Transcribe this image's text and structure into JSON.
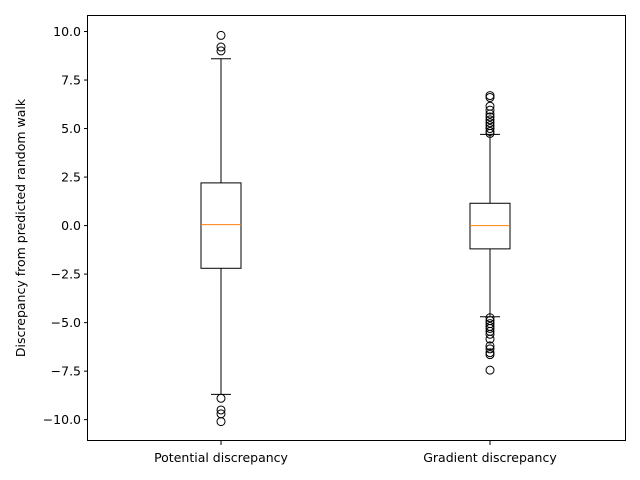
{
  "chart_data": {
    "type": "boxplot",
    "title": "",
    "xlabel": "",
    "ylabel": "Discrepancy from predicted random walk",
    "ylim": [
      -11.1,
      10.8
    ],
    "yticks": [
      -10.0,
      -7.5,
      -5.0,
      -2.5,
      0.0,
      2.5,
      5.0,
      7.5,
      10.0
    ],
    "ytick_labels": [
      "−10.0",
      "−7.5",
      "−5.0",
      "−2.5",
      "0.0",
      "2.5",
      "5.0",
      "7.5",
      "10.0"
    ],
    "grid": false,
    "categories": [
      "Potential discrepancy",
      "Gradient discrepancy"
    ],
    "boxes": [
      {
        "label": "Potential discrepancy",
        "whisker_low": -8.7,
        "q1": -2.2,
        "median": 0.05,
        "q3": 2.2,
        "whisker_high": 8.6,
        "outliers": [
          9.8,
          9.2,
          9.0,
          -8.9,
          -9.5,
          -9.7,
          -10.1
        ]
      },
      {
        "label": "Gradient discrepancy",
        "whisker_low": -4.7,
        "q1": -1.2,
        "median": 0.0,
        "q3": 1.15,
        "whisker_high": 4.7,
        "outliers": [
          6.7,
          6.6,
          6.15,
          5.95,
          5.75,
          5.6,
          5.45,
          5.3,
          5.15,
          5.0,
          4.85,
          4.75,
          -4.75,
          -4.9,
          -5.05,
          -5.2,
          -5.3,
          -5.45,
          -5.6,
          -5.85,
          -6.2,
          -6.35,
          -6.55,
          -6.65,
          -7.45
        ]
      }
    ],
    "colors": {
      "box": "#000000",
      "median": "#ff7f0e",
      "flier": "#000000"
    }
  }
}
